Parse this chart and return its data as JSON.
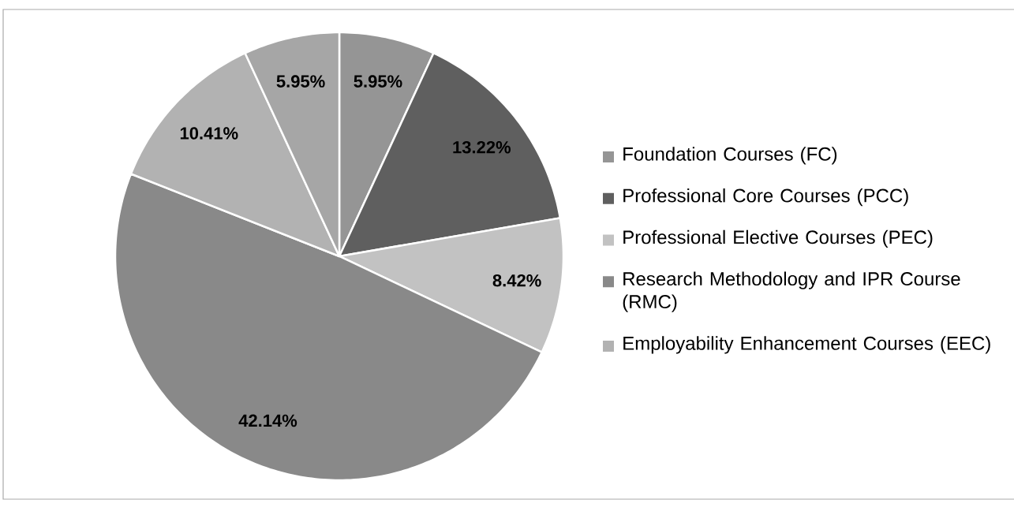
{
  "chart_data": {
    "type": "pie",
    "categories": [
      "Foundation Courses (FC)",
      "Professional Core Courses (PCC)",
      "Professional Elective Courses (PEC)",
      "Research Methodology and IPR Course (RMC)",
      "Employability Enhancement Courses (EEC)",
      null
    ],
    "values": [
      5.95,
      13.22,
      8.42,
      42.14,
      10.41,
      5.95
    ],
    "colors": [
      "#959595",
      "#5f5f5f",
      "#c2c2c2",
      "#898989",
      "#b2b2b2",
      "#a6a6a6"
    ],
    "value_labels": [
      "5.95%",
      "13.22%",
      "8.42%",
      "42.14%",
      "10.41%",
      "5.95%"
    ],
    "legend": "right"
  }
}
